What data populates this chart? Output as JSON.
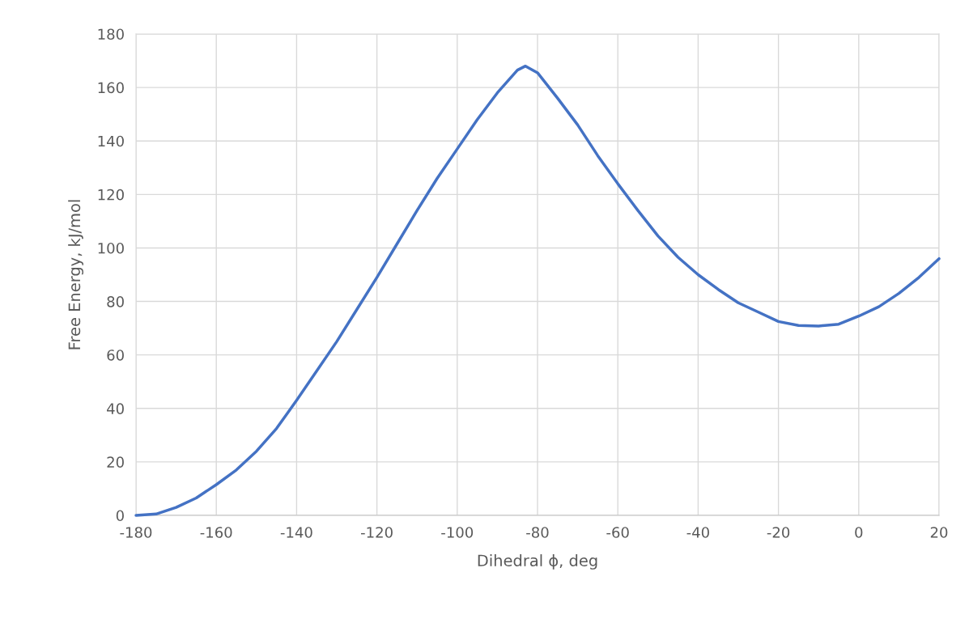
{
  "chart_data": {
    "type": "line",
    "xlabel": "Dihedral ϕ, deg",
    "ylabel": "Free Energy, kJ/mol",
    "x": [
      -180,
      -175,
      -170,
      -165,
      -160,
      -155,
      -150,
      -145,
      -140,
      -135,
      -130,
      -125,
      -120,
      -115,
      -110,
      -105,
      -100,
      -95,
      -90,
      -85,
      -83,
      -80,
      -75,
      -70,
      -65,
      -60,
      -55,
      -50,
      -45,
      -40,
      -35,
      -30,
      -25,
      -20,
      -15,
      -10,
      -5,
      0,
      5,
      10,
      15,
      20
    ],
    "series": [
      {
        "color": "#4472c4",
        "values": [
          0,
          0.5,
          3,
          6.5,
          11.5,
          17,
          24,
          32.5,
          43,
          54,
          65,
          77,
          89,
          101.5,
          114,
          126,
          137,
          148,
          158,
          166.5,
          168,
          165.5,
          156,
          146,
          134.5,
          124,
          114,
          104.5,
          96.5,
          90,
          84.5,
          79.5,
          76,
          72.5,
          71,
          70.8,
          71.5,
          74.5,
          78,
          83,
          89,
          96
        ]
      }
    ],
    "xlim": [
      -180,
      20
    ],
    "xticks": [
      -180,
      -160,
      -140,
      -120,
      -100,
      -80,
      -60,
      -40,
      -20,
      0,
      20
    ],
    "ylim": [
      0,
      180
    ],
    "yticks": [
      0,
      20,
      40,
      60,
      80,
      100,
      120,
      140,
      160,
      180
    ],
    "grid": true,
    "marker": "none",
    "line_style": "solid"
  }
}
